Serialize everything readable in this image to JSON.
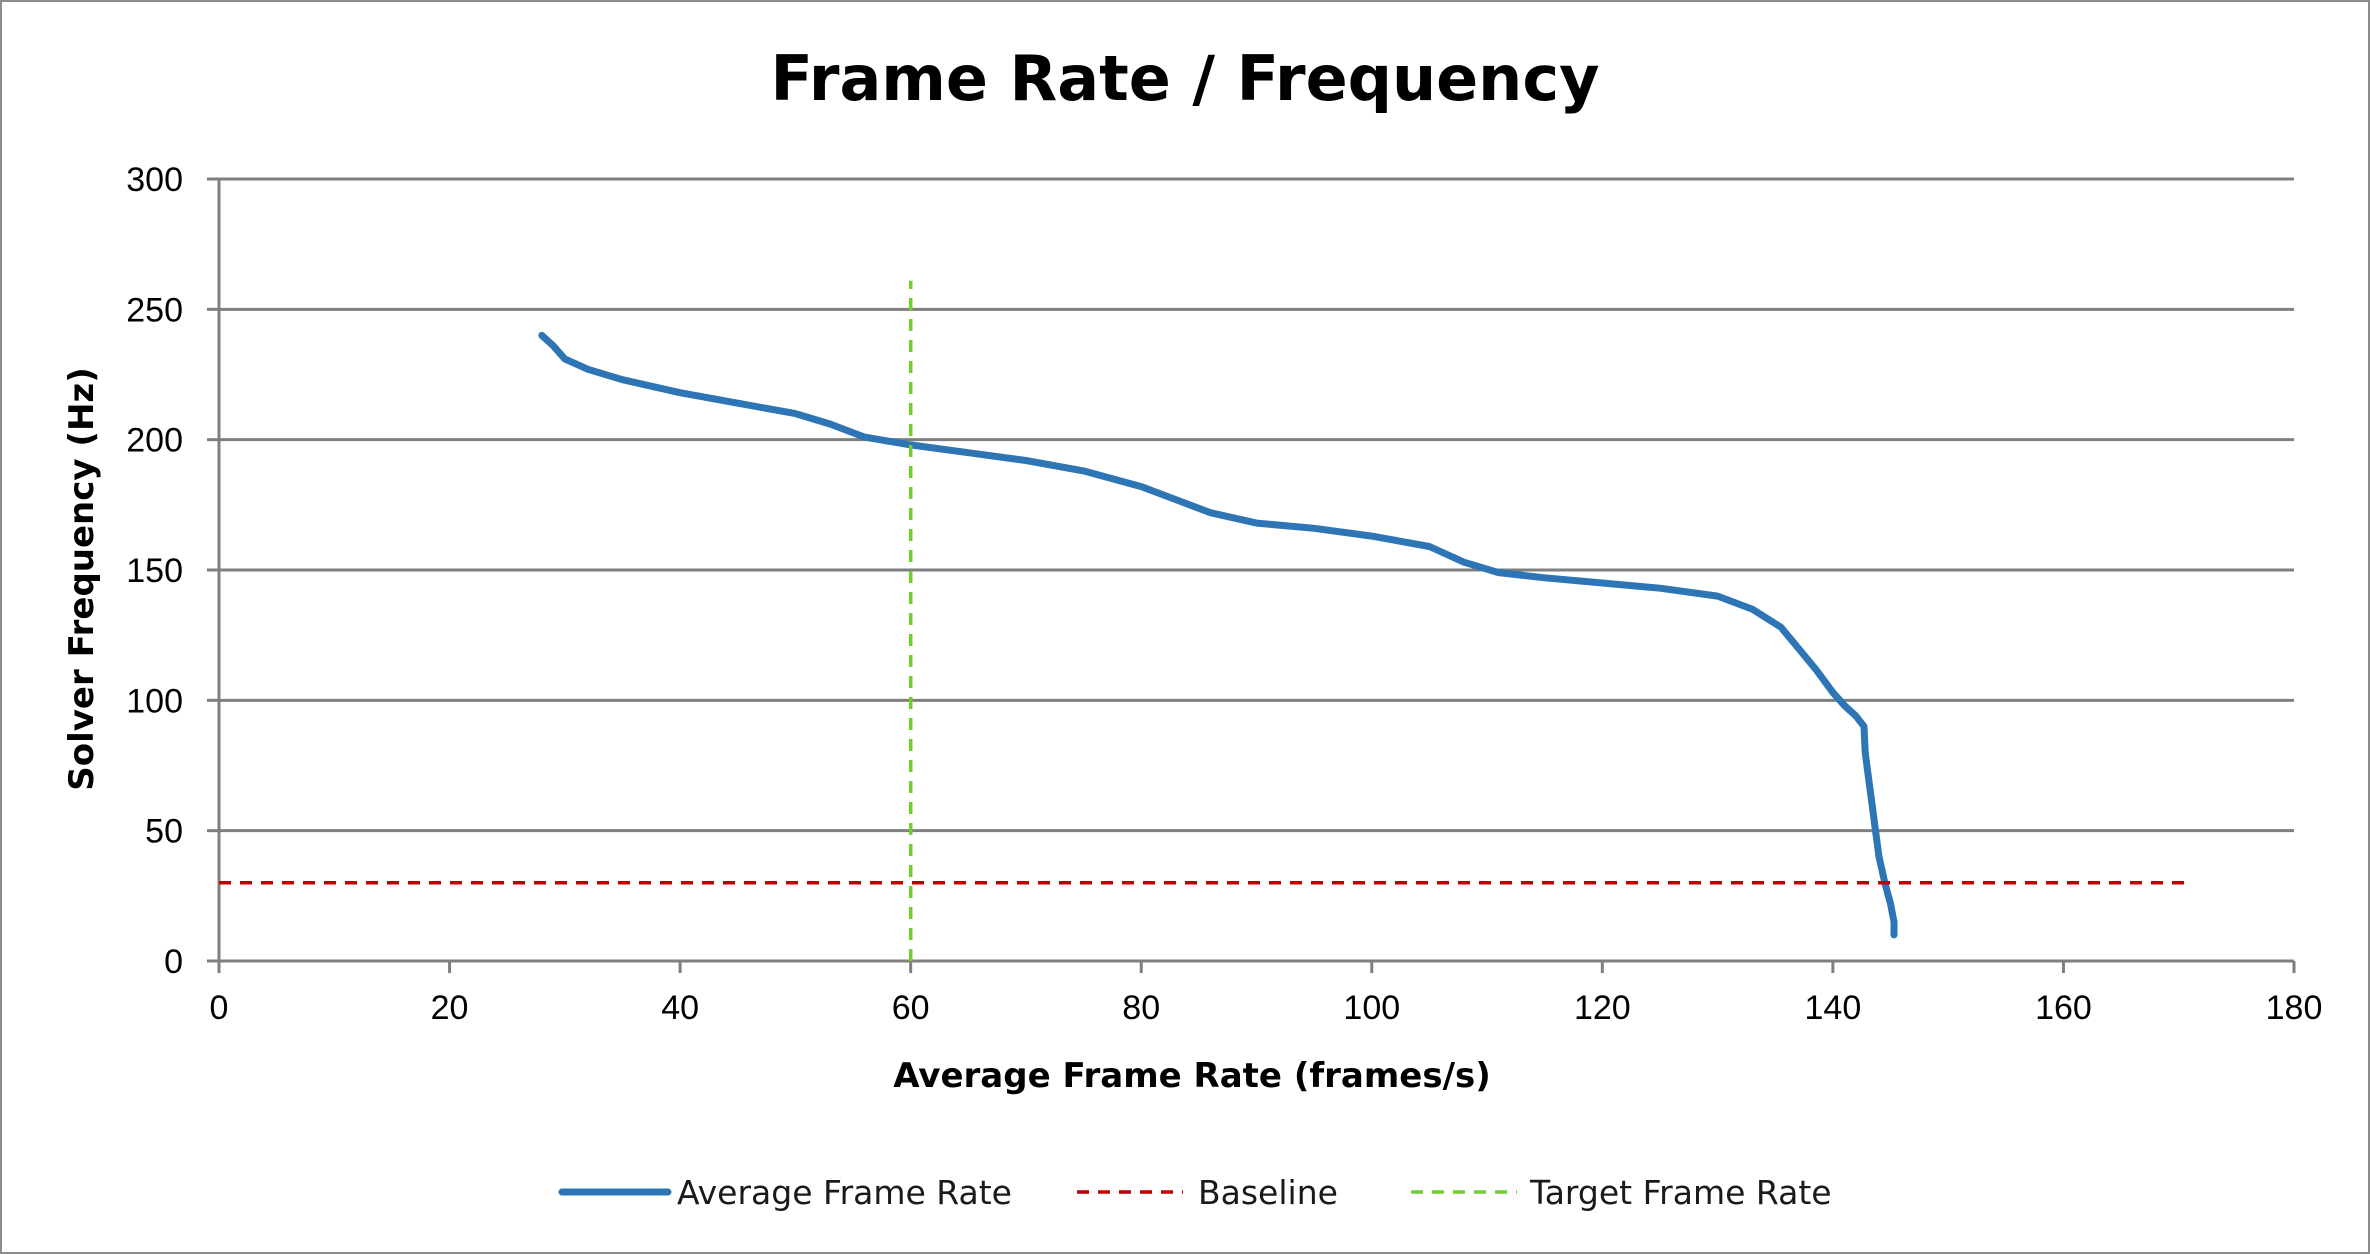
{
  "chart_data": {
    "type": "line",
    "title": "Frame Rate / Frequency",
    "xlabel": "Average Frame Rate (frames/s)",
    "ylabel": "Solver Frequency (Hz)",
    "xlim": [
      0,
      180
    ],
    "ylim": [
      0,
      300
    ],
    "x_ticks": [
      "0",
      "20",
      "40",
      "60",
      "80",
      "100",
      "120",
      "140",
      "160",
      "180"
    ],
    "y_ticks": [
      "0",
      "50",
      "100",
      "150",
      "200",
      "250",
      "300"
    ],
    "grid": "horizontal",
    "legend_position": "bottom",
    "series": [
      {
        "name": "Average Frame Rate",
        "color": "#2e75b6",
        "style": "solid",
        "points": [
          [
            28,
            240
          ],
          [
            29,
            236
          ],
          [
            30,
            231
          ],
          [
            32,
            227
          ],
          [
            35,
            223
          ],
          [
            40,
            218
          ],
          [
            45,
            214
          ],
          [
            50,
            210
          ],
          [
            53,
            206
          ],
          [
            56,
            201
          ],
          [
            60,
            198
          ],
          [
            65,
            195
          ],
          [
            70,
            192
          ],
          [
            75,
            188
          ],
          [
            80,
            182
          ],
          [
            83,
            177
          ],
          [
            86,
            172
          ],
          [
            90,
            168
          ],
          [
            95,
            166
          ],
          [
            100,
            163
          ],
          [
            105,
            159
          ],
          [
            108,
            153
          ],
          [
            111,
            149
          ],
          [
            115,
            147
          ],
          [
            120,
            145
          ],
          [
            125,
            143
          ],
          [
            130,
            140
          ],
          [
            133,
            135
          ],
          [
            135.5,
            128
          ],
          [
            137,
            120
          ],
          [
            138.5,
            112
          ],
          [
            140,
            103
          ],
          [
            141,
            98
          ],
          [
            142,
            94
          ],
          [
            142.7,
            90
          ],
          [
            142.8,
            80
          ],
          [
            143.1,
            70
          ],
          [
            143.4,
            60
          ],
          [
            143.7,
            50
          ],
          [
            144,
            40
          ],
          [
            144.5,
            30
          ],
          [
            145,
            22
          ],
          [
            145.3,
            15
          ],
          [
            145.3,
            10
          ]
        ]
      },
      {
        "name": "Baseline",
        "color": "#c00000",
        "style": "dashed",
        "points": [
          [
            0,
            30
          ],
          [
            171,
            30
          ]
        ]
      },
      {
        "name": "Target Frame Rate",
        "color": "#70ce2e",
        "style": "dashed",
        "points": [
          [
            60,
            0
          ],
          [
            60,
            261
          ]
        ]
      }
    ]
  }
}
